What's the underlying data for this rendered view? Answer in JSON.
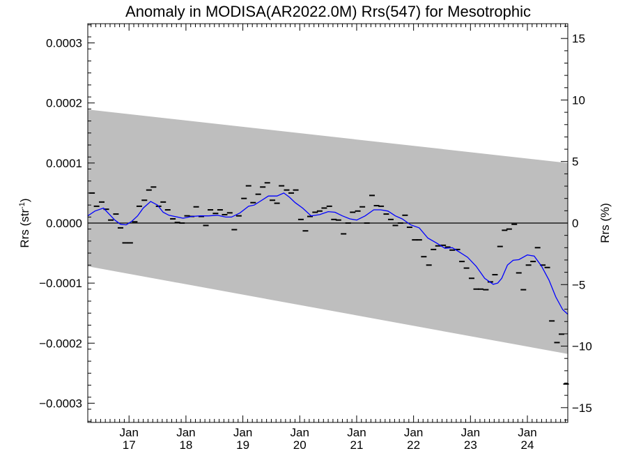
{
  "chart_data": {
    "type": "scatter",
    "title": "Anomaly in MODISA(AR2022.0M) Rrs(547) for Mesotrophic",
    "ylabel_main": "Rrs (str",
    "ylabel_sup": "-1",
    "ylabel_close": ")",
    "ylabel_right": "Rrs (%)",
    "xlim": [
      2016.275,
      2024.71
    ],
    "ylim": [
      -0.000332,
      0.000332
    ],
    "ylim_right": [
      -16.2,
      16.2
    ],
    "y_ticks": [
      "0.0003",
      "0.0002",
      "0.0001",
      "0.0000",
      "−0.0001",
      "−0.0002",
      "−0.0003"
    ],
    "y_tick_values": [
      0.0003,
      0.0002,
      0.0001,
      0,
      -0.0001,
      -0.0002,
      -0.0003
    ],
    "y_ticks_right": [
      "15",
      "10",
      "5",
      "0",
      "−5",
      "−10",
      "−15"
    ],
    "y_tick_values_right": [
      15,
      10,
      5,
      0,
      -5,
      -10,
      -15
    ],
    "x_ticks": [
      {
        "month": "Jan",
        "year": "17",
        "x": 2017.0
      },
      {
        "month": "Jan",
        "year": "18",
        "x": 2018.0
      },
      {
        "month": "Jan",
        "year": "19",
        "x": 2019.0
      },
      {
        "month": "Jan",
        "year": "20",
        "x": 2020.0
      },
      {
        "month": "Jan",
        "year": "21",
        "x": 2021.0
      },
      {
        "month": "Jan",
        "year": "22",
        "x": 2022.0
      },
      {
        "month": "Jan",
        "year": "23",
        "x": 2023.0
      },
      {
        "month": "Jan",
        "year": "24",
        "x": 2024.0
      }
    ],
    "band": {
      "x": [
        2016.275,
        2024.71
      ],
      "upper": [
        0.000189,
        0.0001
      ],
      "lower": [
        -7.2e-05,
        -0.000218
      ],
      "color": "#bebebe"
    },
    "zero_line": 0,
    "points": {
      "color": "#000000",
      "x": [
        2016.35,
        2016.43,
        2016.52,
        2016.6,
        2016.68,
        2016.77,
        2016.85,
        2016.93,
        2017.02,
        2017.1,
        2017.18,
        2017.27,
        2017.35,
        2017.43,
        2017.52,
        2017.6,
        2017.68,
        2017.77,
        2017.85,
        2017.93,
        2018.02,
        2018.1,
        2018.18,
        2018.27,
        2018.35,
        2018.43,
        2018.52,
        2018.6,
        2018.68,
        2018.77,
        2018.85,
        2018.93,
        2019.02,
        2019.1,
        2019.18,
        2019.27,
        2019.35,
        2019.43,
        2019.52,
        2019.6,
        2019.68,
        2019.77,
        2019.85,
        2019.93,
        2020.02,
        2020.1,
        2020.18,
        2020.27,
        2020.35,
        2020.43,
        2020.52,
        2020.6,
        2020.68,
        2020.77,
        2020.85,
        2020.93,
        2021.02,
        2021.1,
        2021.18,
        2021.27,
        2021.35,
        2021.43,
        2021.52,
        2021.6,
        2021.68,
        2021.77,
        2021.85,
        2021.93,
        2022.02,
        2022.1,
        2022.18,
        2022.27,
        2022.35,
        2022.43,
        2022.52,
        2022.6,
        2022.68,
        2022.77,
        2022.85,
        2022.93,
        2023.02,
        2023.1,
        2023.18,
        2023.27,
        2023.35,
        2023.43,
        2023.52,
        2023.6,
        2023.68,
        2023.77,
        2023.85,
        2023.93,
        2024.02,
        2024.1,
        2024.18,
        2024.27,
        2024.35,
        2024.43,
        2024.52,
        2024.6,
        2024.68
      ],
      "y": [
        5e-05,
        2.8e-05,
        3.5e-05,
        2.3e-05,
        5e-06,
        1.5e-05,
        -8e-06,
        -3.3e-05,
        -3.3e-05,
        2e-06,
        2.8e-05,
        3.8e-05,
        5.5e-05,
        6e-05,
        2.8e-05,
        3.5e-05,
        2.2e-05,
        7e-06,
        1e-06,
        0.0,
        1.2e-05,
        1.1e-05,
        2.7e-05,
        1.1e-05,
        -4e-06,
        2.2e-05,
        1.6e-05,
        2.2e-05,
        1.4e-05,
        1.7e-05,
        -1.1e-05,
        1.2e-05,
        4.1e-05,
        6.2e-05,
        3.4e-05,
        4.8e-05,
        6e-05,
        6.7e-05,
        3.8e-05,
        3.3e-05,
        6.2e-05,
        5.5e-05,
        5e-05,
        5.5e-05,
        6e-06,
        -1.3e-05,
        1.1e-05,
        1.8e-05,
        2e-05,
        2.5e-05,
        2.8e-05,
        6e-06,
        5e-06,
        -1.8e-05,
        0.0,
        1.8e-05,
        2e-05,
        2.7e-05,
        0.0,
        4.6e-05,
        2.9e-05,
        2.8e-05,
        1.5e-05,
        6e-06,
        -4e-06,
        0.0,
        1.3e-05,
        -7e-06,
        -2.8e-05,
        -2.8e-05,
        -5.6e-05,
        -7e-05,
        -4.4e-05,
        -3.8e-05,
        -3.7e-05,
        -4e-05,
        -4.5e-05,
        -4.4e-05,
        -6.4e-05,
        -7.5e-05,
        -9.2e-05,
        -0.00011,
        -0.00011,
        -0.000111,
        -9.8e-05,
        -8.6e-05,
        -3.9e-05,
        -1.2e-05,
        -1e-05,
        -2e-06,
        -8.3e-05,
        -0.000111,
        -7e-05,
        -6.4e-05,
        -4.1e-05,
        -7e-05,
        -7.4e-05,
        -0.000163,
        -0.000199,
        -0.000185,
        -0.000268
      ]
    },
    "smooth_line": {
      "color": "#0000ff",
      "x": [
        2016.275,
        2016.4,
        2016.55,
        2016.65,
        2016.75,
        2016.85,
        2016.95,
        2017.05,
        2017.15,
        2017.25,
        2017.38,
        2017.5,
        2017.6,
        2017.7,
        2017.8,
        2017.95,
        2018.1,
        2018.25,
        2018.4,
        2018.55,
        2018.7,
        2018.8,
        2018.95,
        2019.1,
        2019.2,
        2019.3,
        2019.45,
        2019.6,
        2019.72,
        2019.82,
        2019.92,
        2020.05,
        2020.2,
        2020.35,
        2020.5,
        2020.62,
        2020.75,
        2020.88,
        2021.0,
        2021.15,
        2021.3,
        2021.42,
        2021.55,
        2021.68,
        2021.8,
        2021.95,
        2022.1,
        2022.25,
        2022.4,
        2022.55,
        2022.68,
        2022.8,
        2022.95,
        2023.1,
        2023.25,
        2023.4,
        2023.48,
        2023.55,
        2023.65,
        2023.75,
        2023.85,
        2024.0,
        2024.12,
        2024.25,
        2024.38,
        2024.5,
        2024.62,
        2024.71
      ],
      "y": [
        1.2e-05,
        2e-05,
        2.5e-05,
        1.5e-05,
        5e-06,
        -2e-06,
        -3e-06,
        3e-06,
        1.2e-05,
        2.5e-05,
        3.6e-05,
        3e-05,
        1.8e-05,
        1.3e-05,
        1.1e-05,
        8e-06,
        1.1e-05,
        1.2e-05,
        1.2e-05,
        1.3e-05,
        1e-05,
        1e-05,
        1.7e-05,
        2.8e-05,
        3e-05,
        3.6e-05,
        4.5e-05,
        4.5e-05,
        5e-05,
        4.3e-05,
        3.4e-05,
        2.5e-05,
        1.2e-05,
        1.4e-05,
        1.9e-05,
        1.8e-05,
        1.2e-05,
        7e-06,
        5e-06,
        1.2e-05,
        2.2e-05,
        2.2e-05,
        2e-05,
        1.2e-05,
        7e-06,
        -3e-06,
        -8e-06,
        -2.5e-05,
        -3.3e-05,
        -4.2e-05,
        -4.1e-05,
        -4.8e-05,
        -5.7e-05,
        -7.2e-05,
        -9.2e-05,
        -0.000102,
        -0.0001,
        -9.2e-05,
        -7e-05,
        -6.2e-05,
        -6.1e-05,
        -5.3e-05,
        -5.5e-05,
        -7.2e-05,
        -9.5e-05,
        -0.000123,
        -0.000144,
        -0.000152
      ]
    }
  }
}
